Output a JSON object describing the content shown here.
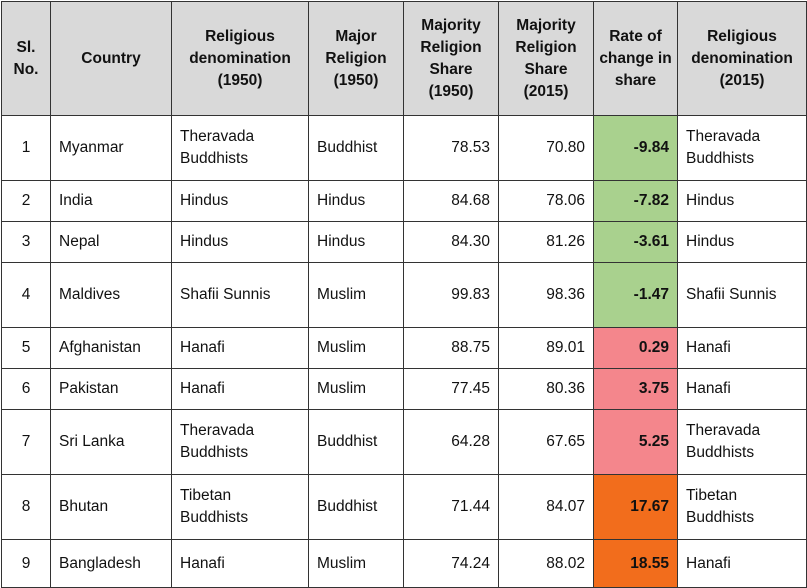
{
  "headers": {
    "sl_no": "Sl. No.",
    "country": "Country",
    "denom_1950": "Religious denomination (1950)",
    "major_1950": "Major Religion (1950)",
    "share_1950": "Majority Religion Share (1950)",
    "share_2015": "Majority Religion Share (2015)",
    "rate": "Rate of change in share",
    "denom_2015": "Religious denomination (2015)"
  },
  "colors": {
    "header_bg": "#d9d9d9",
    "decrease_bg": "#a9d18e",
    "moderate_increase_bg": "#f4868c",
    "large_increase_bg": "#f26d1c"
  },
  "rows": [
    {
      "sl": "1",
      "country": "Myanmar",
      "denom_1950": "Theravada Buddhists",
      "major_1950": "Buddhist",
      "share_1950": "78.53",
      "share_2015": "70.80",
      "rate": "-9.84",
      "denom_2015": "Theravada Buddhists",
      "rate_color": "#a9d18e"
    },
    {
      "sl": "2",
      "country": "India",
      "denom_1950": "Hindus",
      "major_1950": "Hindus",
      "share_1950": "84.68",
      "share_2015": "78.06",
      "rate": "-7.82",
      "denom_2015": "Hindus",
      "rate_color": "#a9d18e"
    },
    {
      "sl": "3",
      "country": "Nepal",
      "denom_1950": "Hindus",
      "major_1950": "Hindus",
      "share_1950": "84.30",
      "share_2015": "81.26",
      "rate": "-3.61",
      "denom_2015": "Hindus",
      "rate_color": "#a9d18e"
    },
    {
      "sl": "4",
      "country": "Maldives",
      "denom_1950": "Shafii Sunnis",
      "major_1950": "Muslim",
      "share_1950": "99.83",
      "share_2015": "98.36",
      "rate": "-1.47",
      "denom_2015": "Shafii Sunnis",
      "rate_color": "#a9d18e"
    },
    {
      "sl": "5",
      "country": "Afghanistan",
      "denom_1950": "Hanafi",
      "major_1950": "Muslim",
      "share_1950": "88.75",
      "share_2015": "89.01",
      "rate": "0.29",
      "denom_2015": "Hanafi",
      "rate_color": "#f4868c"
    },
    {
      "sl": "6",
      "country": "Pakistan",
      "denom_1950": "Hanafi",
      "major_1950": "Muslim",
      "share_1950": "77.45",
      "share_2015": "80.36",
      "rate": "3.75",
      "denom_2015": "Hanafi",
      "rate_color": "#f4868c"
    },
    {
      "sl": "7",
      "country": "Sri Lanka",
      "denom_1950": "Theravada Buddhists",
      "major_1950": "Buddhist",
      "share_1950": "64.28",
      "share_2015": "67.65",
      "rate": "5.25",
      "denom_2015": "Theravada Buddhists",
      "rate_color": "#f4868c"
    },
    {
      "sl": "8",
      "country": "Bhutan",
      "denom_1950": "Tibetan Buddhists",
      "major_1950": "Buddhist",
      "share_1950": "71.44",
      "share_2015": "84.07",
      "rate": "17.67",
      "denom_2015": "Tibetan Buddhists",
      "rate_color": "#f26d1c"
    },
    {
      "sl": "9",
      "country": "Bangladesh",
      "denom_1950": "Hanafi",
      "major_1950": "Muslim",
      "share_1950": "74.24",
      "share_2015": "88.02",
      "rate": "18.55",
      "denom_2015": "Hanafi",
      "rate_color": "#f26d1c"
    }
  ]
}
